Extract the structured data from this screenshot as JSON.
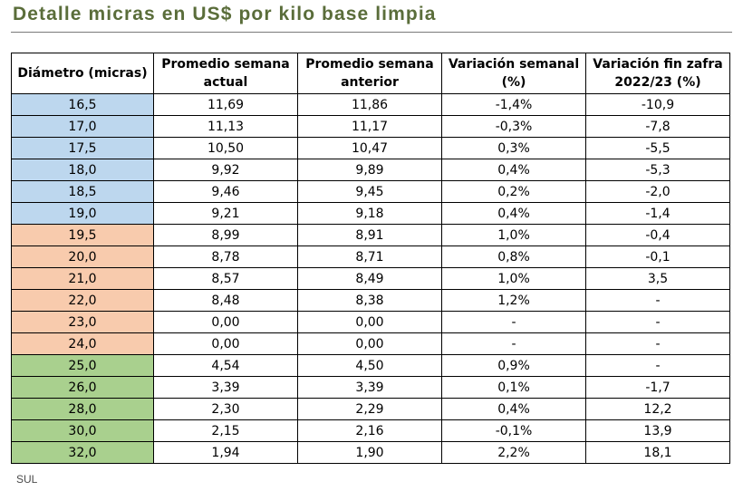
{
  "title": "Detalle micras en US$ por kilo base limpia",
  "source": "SUL",
  "colors": {
    "title": "#5a6d3a",
    "blue": "#bdd7ee",
    "orange": "#f8cbad",
    "green": "#a9d08e"
  },
  "table": {
    "headers": [
      [
        "Diámetro (micras)"
      ],
      [
        "Promedio semana",
        "actual"
      ],
      [
        "Promedio semana",
        "anterior"
      ],
      [
        "Variación semanal",
        "(%)"
      ],
      [
        "Variación fin zafra",
        "2022/23 (%)"
      ]
    ],
    "rows": [
      {
        "diametro": "16,5",
        "actual": "11,69",
        "anterior": "11,86",
        "var_semanal": "-1,4%",
        "var_zafra": "-10,9",
        "group": "blue"
      },
      {
        "diametro": "17,0",
        "actual": "11,13",
        "anterior": "11,17",
        "var_semanal": "-0,3%",
        "var_zafra": "-7,8",
        "group": "blue"
      },
      {
        "diametro": "17,5",
        "actual": "10,50",
        "anterior": "10,47",
        "var_semanal": "0,3%",
        "var_zafra": "-5,5",
        "group": "blue"
      },
      {
        "diametro": "18,0",
        "actual": "9,92",
        "anterior": "9,89",
        "var_semanal": "0,4%",
        "var_zafra": "-5,3",
        "group": "blue"
      },
      {
        "diametro": "18,5",
        "actual": "9,46",
        "anterior": "9,45",
        "var_semanal": "0,2%",
        "var_zafra": "-2,0",
        "group": "blue"
      },
      {
        "diametro": "19,0",
        "actual": "9,21",
        "anterior": "9,18",
        "var_semanal": "0,4%",
        "var_zafra": "-1,4",
        "group": "blue"
      },
      {
        "diametro": "19,5",
        "actual": "8,99",
        "anterior": "8,91",
        "var_semanal": "1,0%",
        "var_zafra": "-0,4",
        "group": "orange"
      },
      {
        "diametro": "20,0",
        "actual": "8,78",
        "anterior": "8,71",
        "var_semanal": "0,8%",
        "var_zafra": "-0,1",
        "group": "orange"
      },
      {
        "diametro": "21,0",
        "actual": "8,57",
        "anterior": "8,49",
        "var_semanal": "1,0%",
        "var_zafra": "3,5",
        "group": "orange"
      },
      {
        "diametro": "22,0",
        "actual": "8,48",
        "anterior": "8,38",
        "var_semanal": "1,2%",
        "var_zafra": "-",
        "group": "orange"
      },
      {
        "diametro": "23,0",
        "actual": "0,00",
        "anterior": "0,00",
        "var_semanal": "-",
        "var_zafra": "-",
        "group": "orange"
      },
      {
        "diametro": "24,0",
        "actual": "0,00",
        "anterior": "0,00",
        "var_semanal": "-",
        "var_zafra": "-",
        "group": "orange"
      },
      {
        "diametro": "25,0",
        "actual": "4,54",
        "anterior": "4,50",
        "var_semanal": "0,9%",
        "var_zafra": "-",
        "group": "green"
      },
      {
        "diametro": "26,0",
        "actual": "3,39",
        "anterior": "3,39",
        "var_semanal": "0,1%",
        "var_zafra": "-1,7",
        "group": "green"
      },
      {
        "diametro": "28,0",
        "actual": "2,30",
        "anterior": "2,29",
        "var_semanal": "0,4%",
        "var_zafra": "12,2",
        "group": "green"
      },
      {
        "diametro": "30,0",
        "actual": "2,15",
        "anterior": "2,16",
        "var_semanal": "-0,1%",
        "var_zafra": "13,9",
        "group": "green"
      },
      {
        "diametro": "32,0",
        "actual": "1,94",
        "anterior": "1,90",
        "var_semanal": "2,2%",
        "var_zafra": "18,1",
        "group": "green"
      }
    ]
  }
}
